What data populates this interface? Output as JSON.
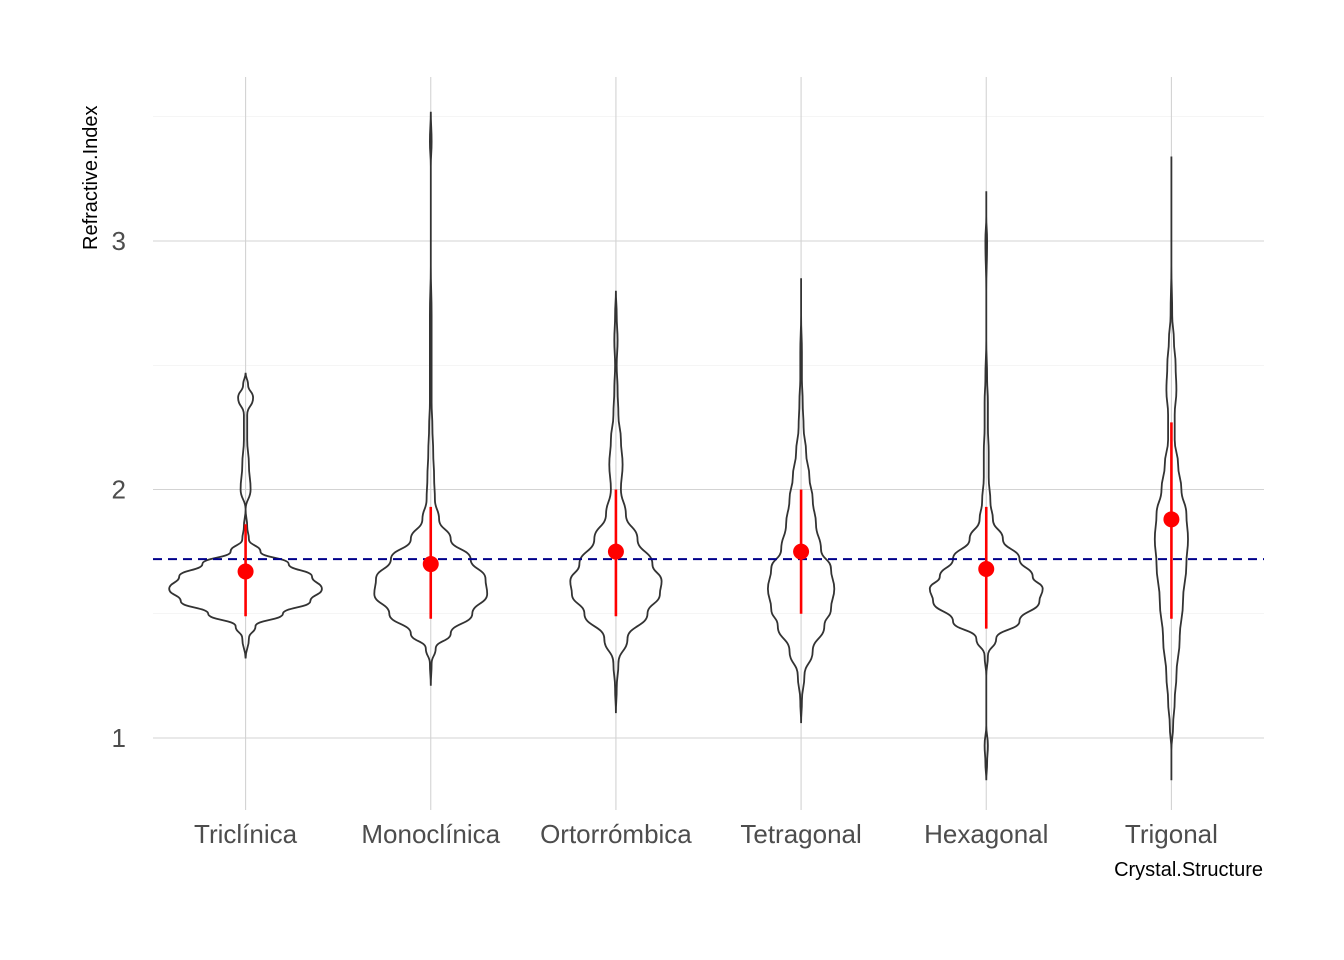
{
  "chart_data": {
    "type": "violin",
    "xlabel": "Crystal.Structure",
    "ylabel": "Refractive.Index",
    "ylim": [
      0.7,
      3.7
    ],
    "y_ticks": [
      1,
      2,
      3
    ],
    "grid": true,
    "reference_line": {
      "y": 1.72,
      "color": "#00008b",
      "style": "dashed"
    },
    "colors": {
      "violin": "#333333",
      "mean": "#ff0000",
      "grid": "#d3d3d3"
    },
    "categories": [
      "Triclínica",
      "Monoclínica",
      "Ortorrómbica",
      "Tetragonal",
      "Hexagonal",
      "Trigonal"
    ],
    "groups": [
      {
        "name": "Triclínica",
        "mean": 1.67,
        "lower": 1.49,
        "upper": 1.86,
        "profile": [
          [
            1.32,
            0.0
          ],
          [
            1.4,
            0.04
          ],
          [
            1.45,
            0.12
          ],
          [
            1.5,
            0.45
          ],
          [
            1.55,
            0.78
          ],
          [
            1.6,
            0.92
          ],
          [
            1.65,
            0.8
          ],
          [
            1.7,
            0.52
          ],
          [
            1.75,
            0.18
          ],
          [
            1.8,
            0.04
          ],
          [
            1.85,
            0.02
          ],
          [
            1.92,
            0.0
          ],
          [
            2.0,
            0.06
          ],
          [
            2.1,
            0.04
          ],
          [
            2.2,
            0.02
          ],
          [
            2.3,
            0.02
          ],
          [
            2.37,
            0.09
          ],
          [
            2.42,
            0.03
          ],
          [
            2.47,
            0.0
          ]
        ]
      },
      {
        "name": "Monoclínica",
        "mean": 1.7,
        "lower": 1.48,
        "upper": 1.93,
        "profile": [
          [
            1.21,
            0.0
          ],
          [
            1.3,
            0.01
          ],
          [
            1.36,
            0.06
          ],
          [
            1.42,
            0.24
          ],
          [
            1.5,
            0.5
          ],
          [
            1.58,
            0.68
          ],
          [
            1.64,
            0.66
          ],
          [
            1.72,
            0.48
          ],
          [
            1.8,
            0.24
          ],
          [
            1.88,
            0.1
          ],
          [
            1.96,
            0.05
          ],
          [
            2.05,
            0.04
          ],
          [
            2.15,
            0.03
          ],
          [
            2.25,
            0.02
          ],
          [
            2.35,
            0.01
          ],
          [
            2.45,
            0.01
          ],
          [
            2.55,
            0.01
          ],
          [
            2.7,
            0.01
          ],
          [
            2.9,
            0.0
          ],
          [
            3.1,
            0.0
          ],
          [
            3.3,
            0.0
          ],
          [
            3.4,
            0.01
          ],
          [
            3.52,
            0.0
          ]
        ]
      },
      {
        "name": "Ortorrómbica",
        "mean": 1.75,
        "lower": 1.49,
        "upper": 2.0,
        "profile": [
          [
            1.1,
            0.0
          ],
          [
            1.2,
            0.01
          ],
          [
            1.3,
            0.03
          ],
          [
            1.4,
            0.14
          ],
          [
            1.5,
            0.38
          ],
          [
            1.58,
            0.53
          ],
          [
            1.63,
            0.55
          ],
          [
            1.7,
            0.44
          ],
          [
            1.8,
            0.26
          ],
          [
            1.9,
            0.12
          ],
          [
            2.0,
            0.06
          ],
          [
            2.1,
            0.08
          ],
          [
            2.2,
            0.06
          ],
          [
            2.3,
            0.03
          ],
          [
            2.4,
            0.02
          ],
          [
            2.5,
            0.01
          ],
          [
            2.6,
            0.02
          ],
          [
            2.7,
            0.01
          ],
          [
            2.8,
            0.0
          ]
        ]
      },
      {
        "name": "Tetragonal",
        "mean": 1.75,
        "lower": 1.5,
        "upper": 2.0,
        "profile": [
          [
            1.06,
            0.0
          ],
          [
            1.15,
            0.01
          ],
          [
            1.25,
            0.04
          ],
          [
            1.35,
            0.14
          ],
          [
            1.45,
            0.28
          ],
          [
            1.52,
            0.36
          ],
          [
            1.6,
            0.4
          ],
          [
            1.68,
            0.36
          ],
          [
            1.76,
            0.24
          ],
          [
            1.86,
            0.18
          ],
          [
            1.96,
            0.14
          ],
          [
            2.05,
            0.1
          ],
          [
            2.15,
            0.06
          ],
          [
            2.25,
            0.03
          ],
          [
            2.35,
            0.02
          ],
          [
            2.45,
            0.01
          ],
          [
            2.55,
            0.01
          ],
          [
            2.7,
            0.0
          ],
          [
            2.85,
            0.0
          ]
        ]
      },
      {
        "name": "Hexagonal",
        "mean": 1.68,
        "lower": 1.44,
        "upper": 1.93,
        "profile": [
          [
            0.83,
            0.0
          ],
          [
            0.9,
            0.01
          ],
          [
            0.97,
            0.02
          ],
          [
            1.05,
            0.0
          ],
          [
            1.15,
            0.0
          ],
          [
            1.25,
            0.0
          ],
          [
            1.33,
            0.02
          ],
          [
            1.4,
            0.12
          ],
          [
            1.47,
            0.4
          ],
          [
            1.55,
            0.64
          ],
          [
            1.6,
            0.68
          ],
          [
            1.65,
            0.56
          ],
          [
            1.72,
            0.4
          ],
          [
            1.8,
            0.2
          ],
          [
            1.88,
            0.08
          ],
          [
            1.95,
            0.05
          ],
          [
            2.05,
            0.03
          ],
          [
            2.15,
            0.03
          ],
          [
            2.25,
            0.02
          ],
          [
            2.35,
            0.02
          ],
          [
            2.45,
            0.01
          ],
          [
            2.6,
            0.0
          ],
          [
            2.8,
            0.0
          ],
          [
            3.0,
            0.01
          ],
          [
            3.1,
            0.0
          ],
          [
            3.2,
            0.0
          ]
        ]
      },
      {
        "name": "Trigonal",
        "mean": 1.88,
        "lower": 1.48,
        "upper": 2.27,
        "profile": [
          [
            0.83,
            0.0
          ],
          [
            0.95,
            0.0
          ],
          [
            1.05,
            0.02
          ],
          [
            1.15,
            0.04
          ],
          [
            1.25,
            0.06
          ],
          [
            1.4,
            0.1
          ],
          [
            1.55,
            0.14
          ],
          [
            1.7,
            0.18
          ],
          [
            1.8,
            0.2
          ],
          [
            1.9,
            0.18
          ],
          [
            2.0,
            0.12
          ],
          [
            2.1,
            0.08
          ],
          [
            2.2,
            0.04
          ],
          [
            2.3,
            0.04
          ],
          [
            2.4,
            0.06
          ],
          [
            2.5,
            0.05
          ],
          [
            2.6,
            0.03
          ],
          [
            2.7,
            0.01
          ],
          [
            2.9,
            0.0
          ],
          [
            3.1,
            0.0
          ],
          [
            3.34,
            0.0
          ]
        ]
      }
    ]
  }
}
